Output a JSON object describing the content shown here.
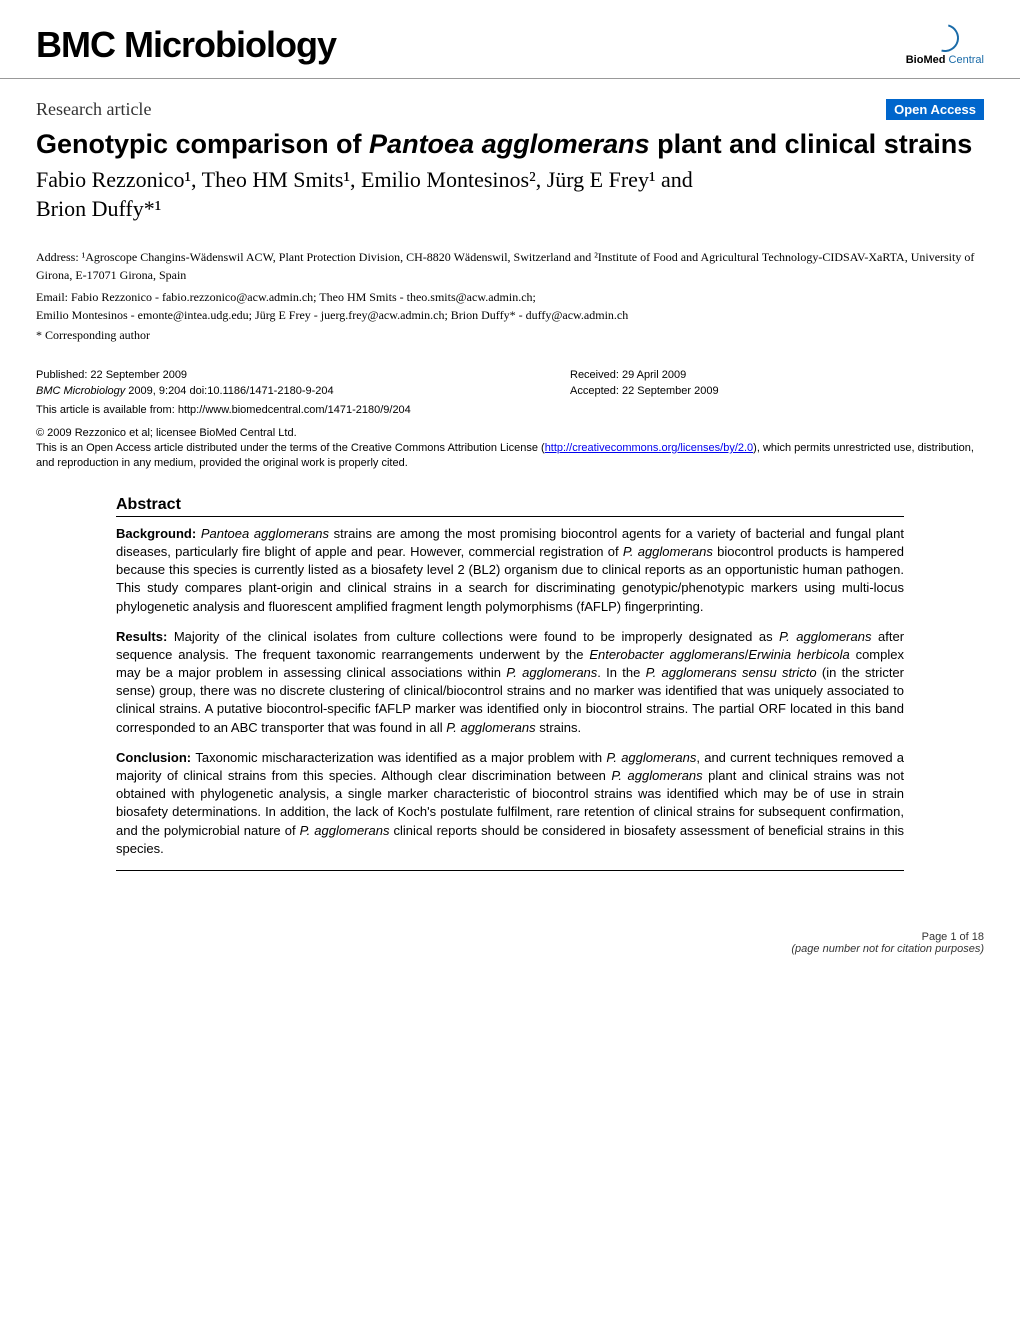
{
  "journal": "BMC Microbiology",
  "publisher_logo": {
    "bold": "BioMed",
    "rest": " Central"
  },
  "article_type": "Research article",
  "badge": "Open Access",
  "title_pre": "Genotypic comparison of ",
  "title_italic": "Pantoea agglomerans",
  "title_post": " plant and clinical strains",
  "authors_line1": "Fabio Rezzonico¹, Theo HM Smits¹, Emilio Montesinos², Jürg E Frey¹ and",
  "authors_line2": "Brion Duffy*¹",
  "address": "Address: ¹Agroscope Changins-Wädenswil ACW, Plant Protection Division, CH-8820 Wädenswil, Switzerland and ²Institute of Food and Agricultural Technology-CIDSAV-XaRTA, University of Girona, E-17071 Girona, Spain",
  "emails_line1": "Email: Fabio Rezzonico - fabio.rezzonico@acw.admin.ch; Theo HM Smits - theo.smits@acw.admin.ch;",
  "emails_line2": "Emilio Montesinos - emonte@intea.udg.edu; Jürg E Frey - juerg.frey@acw.admin.ch; Brion Duffy* - duffy@acw.admin.ch",
  "corresponding": "* Corresponding author",
  "published": "Published: 22 September 2009",
  "citation_journal": "BMC Microbiology",
  "citation_rest": " 2009, 9:204    doi:10.1186/1471-2180-9-204",
  "received": "Received: 29 April 2009",
  "accepted": "Accepted: 22 September 2009",
  "url_label": "This article is available from: http://www.biomedcentral.com/1471-2180/9/204",
  "copyright_line1": "© 2009 Rezzonico et al; licensee BioMed Central Ltd.",
  "copyright_line2_pre": "This is an Open Access article distributed under the terms of the Creative Commons Attribution License (",
  "copyright_link": "http://creativecommons.org/licenses/by/2.0",
  "copyright_line2_post": "), which permits unrestricted use, distribution, and reproduction in any medium, provided the original work is properly cited.",
  "abstract_heading": "Abstract",
  "abstract": {
    "background": {
      "label": "Background: ",
      "text": "Pantoea agglomerans strains are among the most promising biocontrol agents for a variety of bacterial and fungal plant diseases, particularly fire blight of apple and pear. However, commercial registration of P. agglomerans biocontrol products is hampered because this species is currently listed as a biosafety level 2 (BL2) organism due to clinical reports as an opportunistic human pathogen. This study compares plant-origin and clinical strains in a search for discriminating genotypic/phenotypic markers using multi-locus phylogenetic analysis and fluorescent amplified fragment length polymorphisms (fAFLP) fingerprinting."
    },
    "results": {
      "label": "Results: ",
      "text": "Majority of the clinical isolates from culture collections were found to be improperly designated as P. agglomerans after sequence analysis. The frequent taxonomic rearrangements underwent by the Enterobacter agglomerans/Erwinia herbicola complex may be a major problem in assessing clinical associations within P. agglomerans. In the P. agglomerans sensu stricto (in the stricter sense) group, there was no discrete clustering of clinical/biocontrol strains and no marker was identified that was uniquely associated to clinical strains. A putative biocontrol-specific fAFLP marker was identified only in biocontrol strains. The partial ORF located in this band corresponded to an ABC transporter that was found in all P. agglomerans strains."
    },
    "conclusion": {
      "label": "Conclusion: ",
      "text": "Taxonomic mischaracterization was identified as a major problem with P. agglomerans, and current techniques removed a majority of clinical strains from this species. Although clear discrimination between P. agglomerans plant and clinical strains was not obtained with phylogenetic analysis, a single marker characteristic of biocontrol strains was identified which may be of use in strain biosafety determinations. In addition, the lack of Koch's postulate fulfilment, rare retention of clinical strains for subsequent confirmation, and the polymicrobial nature of P. agglomerans clinical reports should be considered in biosafety assessment of beneficial strains in this species."
    }
  },
  "footer_page": "Page 1 of 18",
  "footer_note": "(page number not for citation purposes)"
}
